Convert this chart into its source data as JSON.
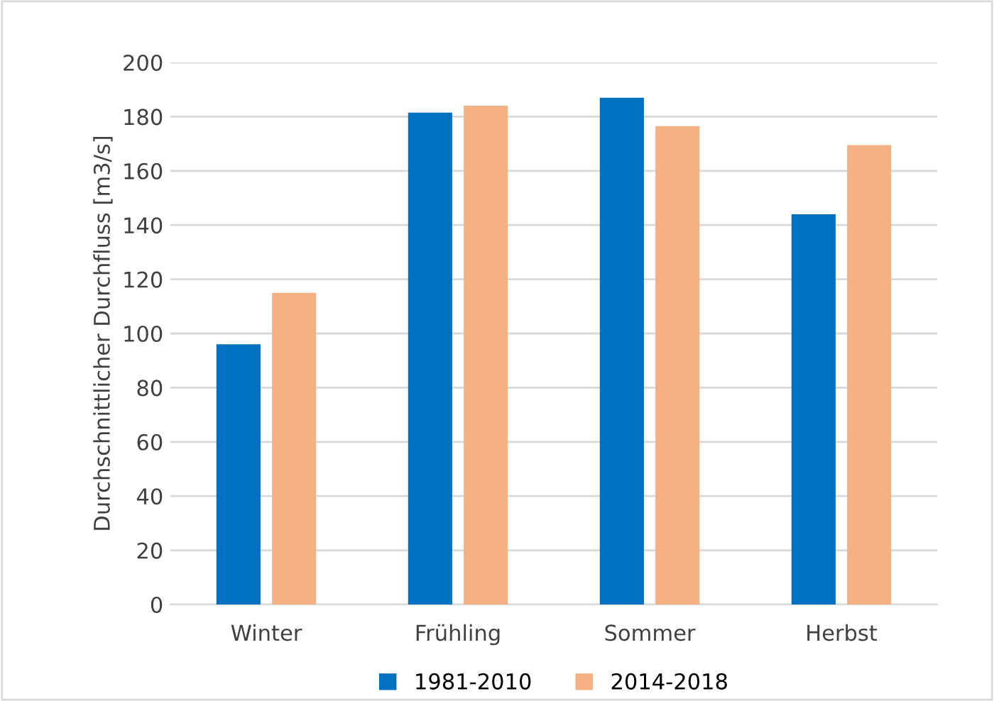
{
  "chart_data": {
    "type": "bar",
    "ylabel": "Durchschnittlicher Durchfluss [m3/s]",
    "categories": [
      "Winter",
      "Frühling",
      "Sommer",
      "Herbst"
    ],
    "series": [
      {
        "name": "1981-2010",
        "color": "#0070c0",
        "values": [
          96,
          181.5,
          187,
          144
        ]
      },
      {
        "name": "2014-2018",
        "color": "#f4b183",
        "values": [
          115,
          184,
          176.5,
          169.5
        ]
      }
    ],
    "ylim": [
      0,
      200
    ],
    "yticks": [
      0,
      20,
      40,
      60,
      80,
      100,
      120,
      140,
      160,
      180,
      200
    ],
    "grid": "y",
    "legend": "bottom"
  }
}
